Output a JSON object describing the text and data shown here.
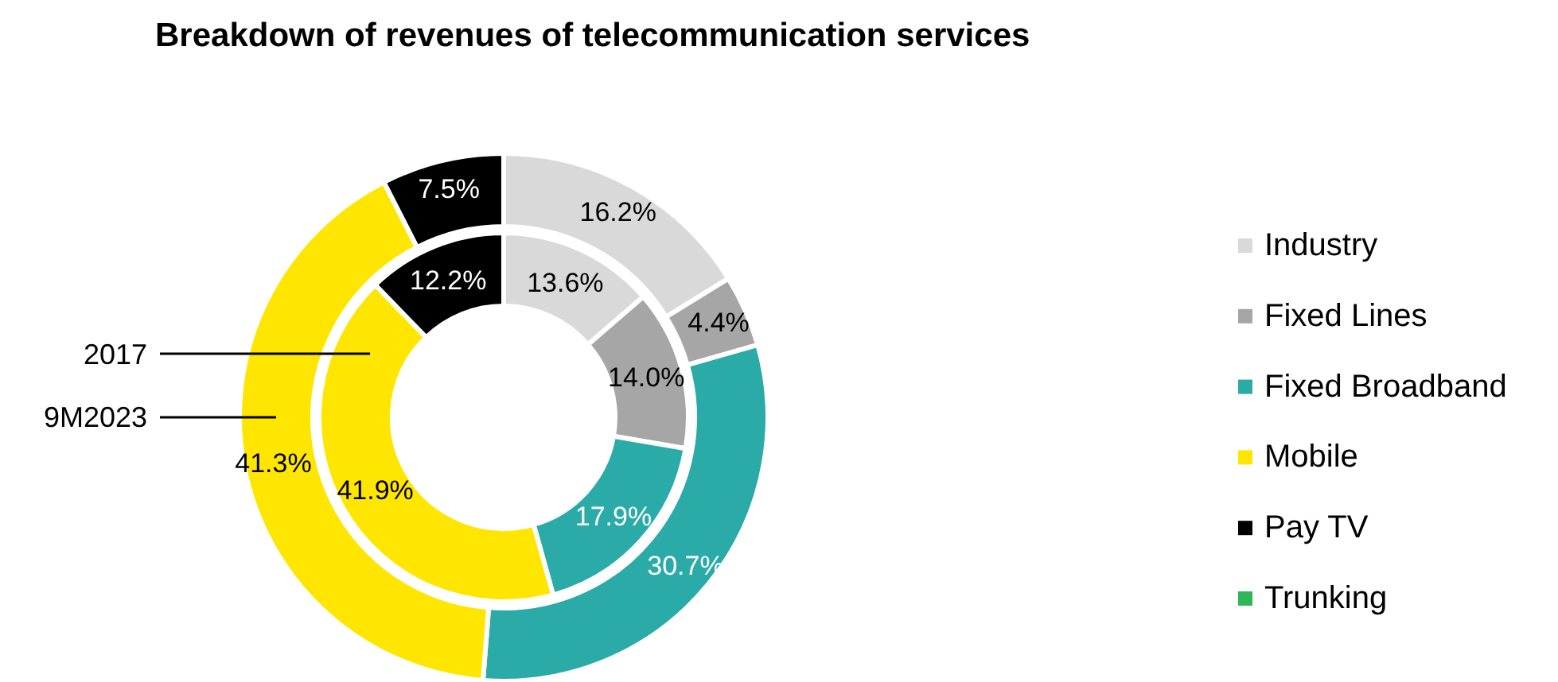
{
  "chart_data": {
    "type": "donut",
    "title": "Breakdown of revenues of telecommunication services",
    "categories": [
      "Industry",
      "Fixed Lines",
      "Fixed Broadband",
      "Mobile",
      "Pay TV",
      "Trunking"
    ],
    "colors": [
      "#d9d9d9",
      "#a6a6a6",
      "#2aaba8",
      "#ffe600",
      "#000000",
      "#2db757"
    ],
    "series": [
      {
        "name": "2017",
        "values": [
          13.6,
          14.0,
          17.9,
          41.9,
          12.2,
          null
        ],
        "value_labels": [
          "13.6%",
          "14.0%",
          "17.9%",
          "41.9%",
          "12.2%",
          null
        ]
      },
      {
        "name": "9M2023",
        "values": [
          16.2,
          4.4,
          30.7,
          41.3,
          7.5,
          null
        ],
        "value_labels": [
          "16.2%",
          "4.4%",
          "30.7%",
          "41.3%",
          "7.5%",
          null
        ]
      }
    ],
    "legend": "right"
  }
}
